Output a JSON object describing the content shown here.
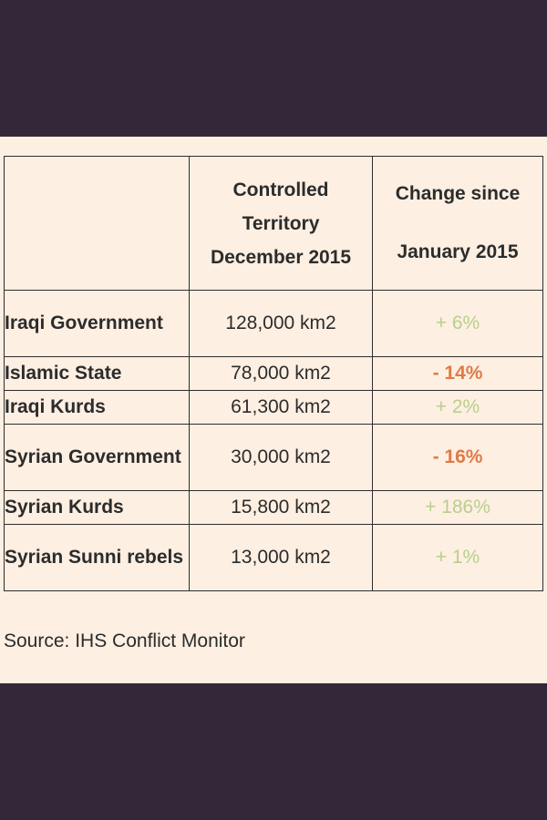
{
  "table": {
    "headers": [
      "",
      "Controlled Territory December 2015",
      "Change since January 2015"
    ],
    "rows": [
      {
        "name": "Iraqi Government",
        "area": "128,000 km2",
        "change": "+ 6%"
      },
      {
        "name": "Islamic State",
        "area": "78,000 km2",
        "change": "- 14%"
      },
      {
        "name": "Iraqi Kurds",
        "area": "61,300 km2",
        "change": "+ 2%"
      },
      {
        "name": "Syrian Government",
        "area": "30,000 km2",
        "change": "- 16%"
      },
      {
        "name": "Syrian Kurds",
        "area": "15,800 km2",
        "change": "+ 186%"
      },
      {
        "name": "Syrian Sunni rebels",
        "area": "13,000 km2",
        "change": "+ 1%"
      }
    ]
  },
  "source": "Source: IHS Conflict Monitor",
  "colors": {
    "background_dark": "#33283a",
    "card": "#fdefe2",
    "positive": "#b9cf8b",
    "negative": "#e07a47",
    "text": "#2c2c2c"
  }
}
